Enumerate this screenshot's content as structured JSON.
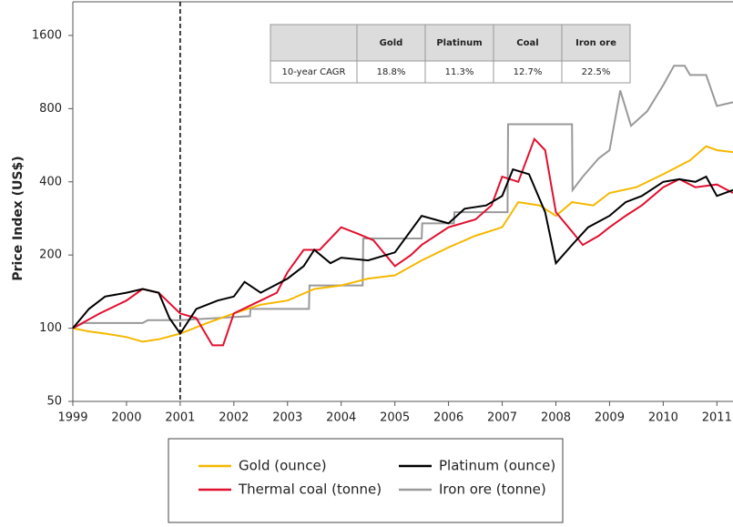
{
  "chart_data": {
    "type": "line",
    "y_label": "Price Index (US$)",
    "log_y": true,
    "xlim": [
      1999,
      2011.3
    ],
    "xticks": [
      1999,
      2000,
      2001,
      2002,
      2003,
      2004,
      2005,
      2006,
      2007,
      2008,
      2009,
      2010,
      2011
    ],
    "ylim": [
      50,
      2200
    ],
    "yticks": [
      50,
      100,
      200,
      400,
      800,
      1600
    ],
    "marker_x": 2001,
    "series": [
      {
        "name": "Gold (ounce)",
        "color": "#f5b800",
        "x": [
          1999,
          1999.3,
          1999.6,
          2000,
          2000.3,
          2000.6,
          2001,
          2001.5,
          2002,
          2002.5,
          2003,
          2003.5,
          2004,
          2004.5,
          2005,
          2005.5,
          2006,
          2006.5,
          2007,
          2007.3,
          2007.7,
          2008,
          2008.3,
          2008.7,
          2009,
          2009.5,
          2010,
          2010.5,
          2010.8,
          2011,
          2011.3
        ],
        "values": [
          100,
          97,
          95,
          92,
          88,
          90,
          95,
          105,
          115,
          125,
          130,
          145,
          150,
          160,
          165,
          190,
          215,
          240,
          260,
          330,
          320,
          290,
          330,
          320,
          360,
          380,
          430,
          490,
          560,
          540,
          530
        ]
      },
      {
        "name": "Thermal coal (tonne)",
        "color": "#e0102f",
        "x": [
          1999,
          1999.5,
          2000,
          2000.3,
          2000.6,
          2001,
          2001.3,
          2001.6,
          2001.8,
          2002,
          2002.5,
          2002.8,
          2003,
          2003.3,
          2003.6,
          2004,
          2004.3,
          2004.6,
          2005,
          2005.3,
          2005.5,
          2006,
          2006.5,
          2006.8,
          2007,
          2007.3,
          2007.6,
          2007.8,
          2008,
          2008.3,
          2008.5,
          2008.8,
          2009,
          2009.3,
          2009.6,
          2010,
          2010.3,
          2010.6,
          2011,
          2011.3
        ],
        "values": [
          100,
          115,
          130,
          145,
          140,
          115,
          110,
          85,
          85,
          115,
          130,
          140,
          170,
          210,
          210,
          260,
          245,
          230,
          180,
          200,
          220,
          260,
          280,
          320,
          420,
          400,
          600,
          540,
          300,
          250,
          220,
          240,
          260,
          290,
          320,
          380,
          410,
          380,
          390,
          360
        ]
      },
      {
        "name": "Platinum (ounce)",
        "color": "#000000",
        "x": [
          1999,
          1999.3,
          1999.6,
          2000,
          2000.3,
          2000.6,
          2000.8,
          2001,
          2001.3,
          2001.7,
          2002,
          2002.2,
          2002.5,
          2003,
          2003.3,
          2003.5,
          2003.8,
          2004,
          2004.5,
          2005,
          2005.5,
          2006,
          2006.3,
          2006.7,
          2007,
          2007.2,
          2007.5,
          2007.8,
          2008,
          2008.3,
          2008.6,
          2009,
          2009.3,
          2009.6,
          2010,
          2010.3,
          2010.6,
          2010.8,
          2011,
          2011.3
        ],
        "values": [
          100,
          120,
          135,
          140,
          145,
          140,
          110,
          95,
          120,
          130,
          135,
          155,
          140,
          160,
          180,
          210,
          185,
          195,
          190,
          205,
          290,
          270,
          310,
          320,
          350,
          450,
          430,
          300,
          185,
          220,
          260,
          290,
          330,
          350,
          400,
          410,
          400,
          420,
          350,
          370
        ]
      },
      {
        "name": "Iron ore (tonne)",
        "color": "#999999",
        "x": [
          1999,
          1999.2,
          2000.3,
          2000.4,
          2001,
          2002.3,
          2002.31,
          2003.4,
          2003.41,
          2004.4,
          2004.41,
          2005.5,
          2005.51,
          2006.1,
          2006.11,
          2007.1,
          2007.11,
          2008.3,
          2008.31,
          2008.5,
          2008.8,
          2009,
          2009.2,
          2009.4,
          2009.7,
          2010,
          2010.2,
          2010.4,
          2010.5,
          2010.8,
          2011,
          2011.3
        ],
        "values": [
          100,
          105,
          105,
          108,
          108,
          112,
          120,
          120,
          150,
          150,
          234,
          234,
          270,
          270,
          300,
          300,
          690,
          690,
          370,
          420,
          500,
          540,
          950,
          680,
          780,
          1000,
          1200,
          1200,
          1100,
          1100,
          820,
          850
        ]
      }
    ],
    "table": {
      "columns": [
        "Gold",
        "Platinum",
        "Coal",
        "Iron ore"
      ],
      "rows": [
        [
          "10-year CAGR",
          "18.8%",
          "11.3%",
          "12.7%",
          "22.5%"
        ]
      ]
    }
  }
}
